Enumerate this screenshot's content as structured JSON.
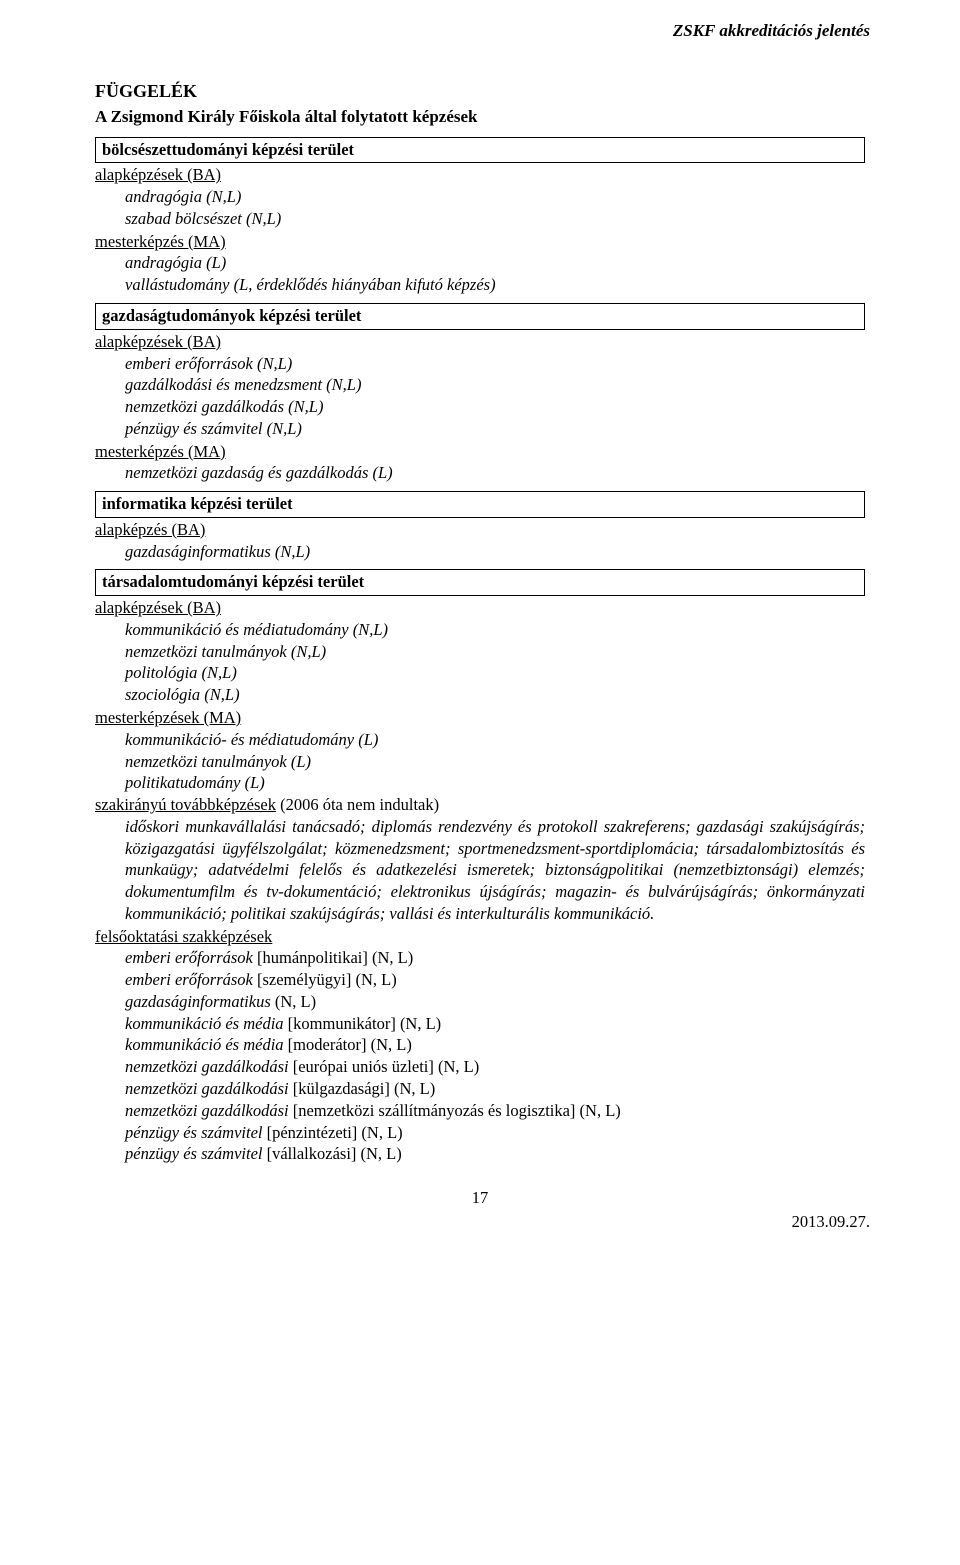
{
  "header": {
    "running_title": "ZSKF akkreditációs jelentés"
  },
  "appendix": {
    "title": "FÜGGELÉK",
    "subtitle": "A Zsigmond Király Főiskola által folytatott képzések"
  },
  "sections": {
    "bolcseszet": {
      "area_title": "bölcsészettudományi képzési terület",
      "ba_label": "alapképzések (BA)",
      "ba_items": [
        "andragógia (N,L)",
        "szabad bölcsészet (N,L)"
      ],
      "ma_label": "mesterképzés (MA)",
      "ma_items": [
        "andragógia (L)",
        "vallástudomány (L, érdeklődés hiányában kifutó képzés)"
      ]
    },
    "gazdasag": {
      "area_title": "gazdaságtudományok képzési terület",
      "ba_label": "alapképzések (BA)",
      "ba_items": [
        "emberi erőforrások (N,L)",
        "gazdálkodási és menedzsment (N,L)",
        "nemzetközi gazdálkodás (N,L)",
        "pénzügy és számvitel (N,L)"
      ],
      "ma_label": "mesterképzés (MA)",
      "ma_items": [
        "nemzetközi gazdaság és gazdálkodás (L)"
      ]
    },
    "informatika": {
      "area_title": "informatika képzési terület",
      "ba_label": "alapképzés (BA)",
      "ba_items": [
        "gazdaságinformatikus (N,L)"
      ]
    },
    "tarsadalom": {
      "area_title": "társadalomtudományi képzési terület",
      "ba_label": "alapképzések (BA)",
      "ba_items": [
        "kommunikáció és médiatudomány (N,L)",
        "nemzetközi tanulmányok (N,L)",
        "politológia (N,L)",
        "szociológia (N,L)"
      ],
      "ma_label": "mesterképzések (MA)",
      "ma_items": [
        "kommunikáció- és médiatudomány (L)",
        "nemzetközi tanulmányok (L)",
        "politikatudomány (L)"
      ],
      "szakiranyu_label": "szakirányú továbbképzések",
      "szakiranyu_suffix": " (2006 óta nem indultak)",
      "szakiranyu_paragraph": "időskori munkavállalási tanácsadó; diplomás rendezvény és protokoll szakreferens; gazdasági szakújságírás; közigazgatási ügyfélszolgálat; közmenedzsment; sportmenedzsment-sportdiplomácia; társadalombiztosítás és munkaügy; adatvédelmi felelős és adatkezelési ismeretek; biztonságpolitikai (nemzetbiztonsági) elemzés; dokumentumfilm és tv-dokumentáció; elektronikus újságírás; magazin- és bulvárújságírás; önkormányzati kommunikáció; politikai szakújságírás; vallási és interkulturális kommunikáció.",
      "felsooktatasi_label": "felsőoktatási szakképzések",
      "felsooktatasi_items": [
        {
          "pre": "emberi erőforrások",
          "mid": " [humánpolitikai] (N, L)"
        },
        {
          "pre": "emberi erőforrások",
          "mid": " [személyügyi] (N, L)"
        },
        {
          "pre": "gazdaságinformatikus",
          "mid": " (N, L)"
        },
        {
          "pre": "kommunikáció és média",
          "mid": " [kommunikátor] (N, L)"
        },
        {
          "pre": "kommunikáció és média",
          "mid": " [moderátor] (N, L)"
        },
        {
          "pre": "nemzetközi gazdálkodási",
          "mid": " [európai uniós üzleti] (N, L)"
        },
        {
          "pre": "nemzetközi gazdálkodási",
          "mid": " [külgazdasági] (N, L)"
        },
        {
          "pre": "nemzetközi gazdálkodási",
          "mid": " [nemzetközi szállítmányozás és logisztika] (N, L)"
        },
        {
          "pre": "pénzügy és számvitel",
          "mid": " [pénzintézeti] (N, L)"
        },
        {
          "pre": "pénzügy és számvitel",
          "mid": " [vállalkozási] (N, L)"
        }
      ]
    }
  },
  "footer": {
    "page_number": "17",
    "date": "2013.09.27."
  }
}
